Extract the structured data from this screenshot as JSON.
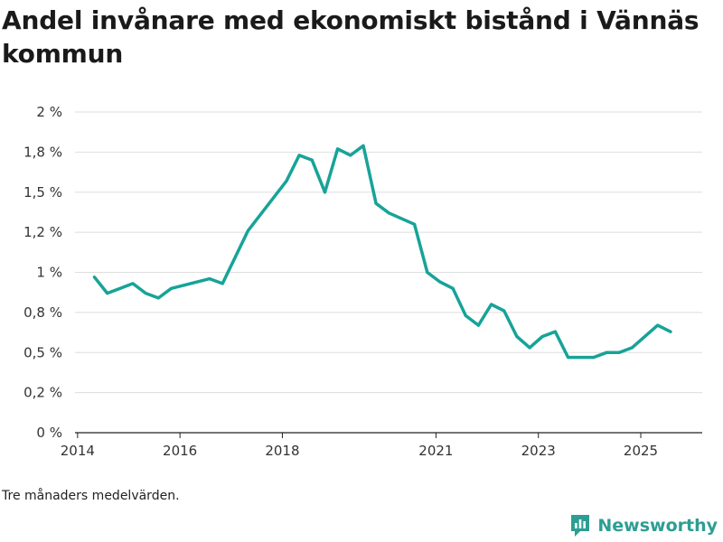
{
  "title": "Andel invånare med ekonomiskt bistånd i Vännäs kommun",
  "footnote": "Tre månaders medelvärden.",
  "brand": "Newsworthy",
  "colors": {
    "line": "#17a398",
    "grid": "#dedede",
    "brand": "#2c9e93"
  },
  "chart_data": {
    "type": "line",
    "title": "Andel invånare med ekonomiskt bistånd i Vännäs kommun",
    "xlabel": "",
    "ylabel": "",
    "ylim": [
      0,
      2.0
    ],
    "xlim": [
      2013.95,
      2026.2
    ],
    "y_ticks": [
      {
        "value": 0,
        "label": "0 %"
      },
      {
        "value": 0.25,
        "label": "0,2 %"
      },
      {
        "value": 0.5,
        "label": "0,5 %"
      },
      {
        "value": 0.75,
        "label": "0,8 %"
      },
      {
        "value": 1.0,
        "label": "1 %"
      },
      {
        "value": 1.25,
        "label": "1,2 %"
      },
      {
        "value": 1.5,
        "label": "1,5 %"
      },
      {
        "value": 1.75,
        "label": "1,8 %"
      },
      {
        "value": 2.0,
        "label": "2 %"
      }
    ],
    "x_ticks": [
      {
        "value": 2014,
        "label": "2014"
      },
      {
        "value": 2016,
        "label": "2016"
      },
      {
        "value": 2018,
        "label": "2018"
      },
      {
        "value": 2021,
        "label": "2021"
      },
      {
        "value": 2023,
        "label": "2023"
      },
      {
        "value": 2025,
        "label": "2025"
      }
    ],
    "series": [
      {
        "name": "Andel invånare med ekonomiskt bistånd",
        "x": [
          2014.33,
          2014.58,
          2015.08,
          2015.33,
          2015.58,
          2015.83,
          2016.58,
          2016.83,
          2017.33,
          2018.08,
          2018.33,
          2018.58,
          2018.83,
          2019.08,
          2019.33,
          2019.58,
          2019.83,
          2020.08,
          2020.58,
          2020.83,
          2021.08,
          2021.33,
          2021.58,
          2021.83,
          2022.08,
          2022.33,
          2022.58,
          2022.83,
          2023.08,
          2023.33,
          2023.58,
          2023.83,
          2024.08,
          2024.33,
          2024.58,
          2024.83,
          2025.33,
          2025.58
        ],
        "values": [
          0.97,
          0.87,
          0.93,
          0.87,
          0.84,
          0.9,
          0.96,
          0.93,
          1.26,
          1.57,
          1.73,
          1.7,
          1.5,
          1.77,
          1.73,
          1.79,
          1.43,
          1.37,
          1.3,
          1.0,
          0.94,
          0.9,
          0.73,
          0.67,
          0.8,
          0.76,
          0.6,
          0.53,
          0.6,
          0.63,
          0.47,
          0.47,
          0.47,
          0.5,
          0.5,
          0.53,
          0.67,
          0.63
        ]
      }
    ]
  }
}
